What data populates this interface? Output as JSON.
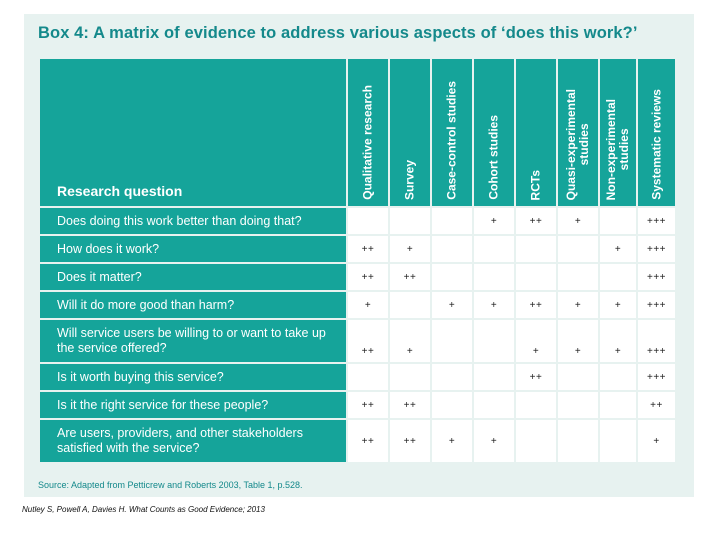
{
  "box": {
    "title": "Box 4:  A matrix of evidence to address various aspects of ‘does this work?’",
    "row_header": "Research question",
    "columns": [
      "Qualitative research",
      "Survey",
      "Case-control studies",
      "Cohort studies",
      "RCTs",
      "Quasi-experimental\nstudies",
      "Non-experimental\nstudies",
      "Systematic reviews"
    ],
    "rows": [
      {
        "question": "Does doing this work better than doing that?",
        "marks": [
          "",
          "",
          "",
          "+",
          "++",
          "+",
          "",
          "+++"
        ]
      },
      {
        "question": "How does it work?",
        "marks": [
          "++",
          "+",
          "",
          "",
          "",
          "",
          "+",
          "+++"
        ]
      },
      {
        "question": "Does it matter?",
        "marks": [
          "++",
          "++",
          "",
          "",
          "",
          "",
          "",
          "+++"
        ]
      },
      {
        "question": "Will it do more good than harm?",
        "marks": [
          "+",
          "",
          "+",
          "+",
          "++",
          "+",
          "+",
          "+++"
        ]
      },
      {
        "question": "Will service users be willing to or want to take up the service offered?",
        "marks": [
          "++",
          "+",
          "",
          "",
          "+",
          "+",
          "+",
          "+++"
        ]
      },
      {
        "question": "Is it worth buying this service?",
        "marks": [
          "",
          "",
          "",
          "",
          "++",
          "",
          "",
          "+++"
        ]
      },
      {
        "question": "Is it the right service for these people?",
        "marks": [
          "++",
          "++",
          "",
          "",
          "",
          "",
          "",
          "++"
        ]
      },
      {
        "question": "Are users, providers, and other stakeholders satisfied with the service?",
        "marks": [
          "++",
          "++",
          "+",
          "+",
          "",
          "",
          "",
          "+"
        ]
      }
    ],
    "source": "Source: Adapted from Petticrew and Roberts 2003, Table 1, p.528."
  },
  "citation": "Nutley S, Powell A, Davies H. What Counts as Good Evidence; 2013"
}
